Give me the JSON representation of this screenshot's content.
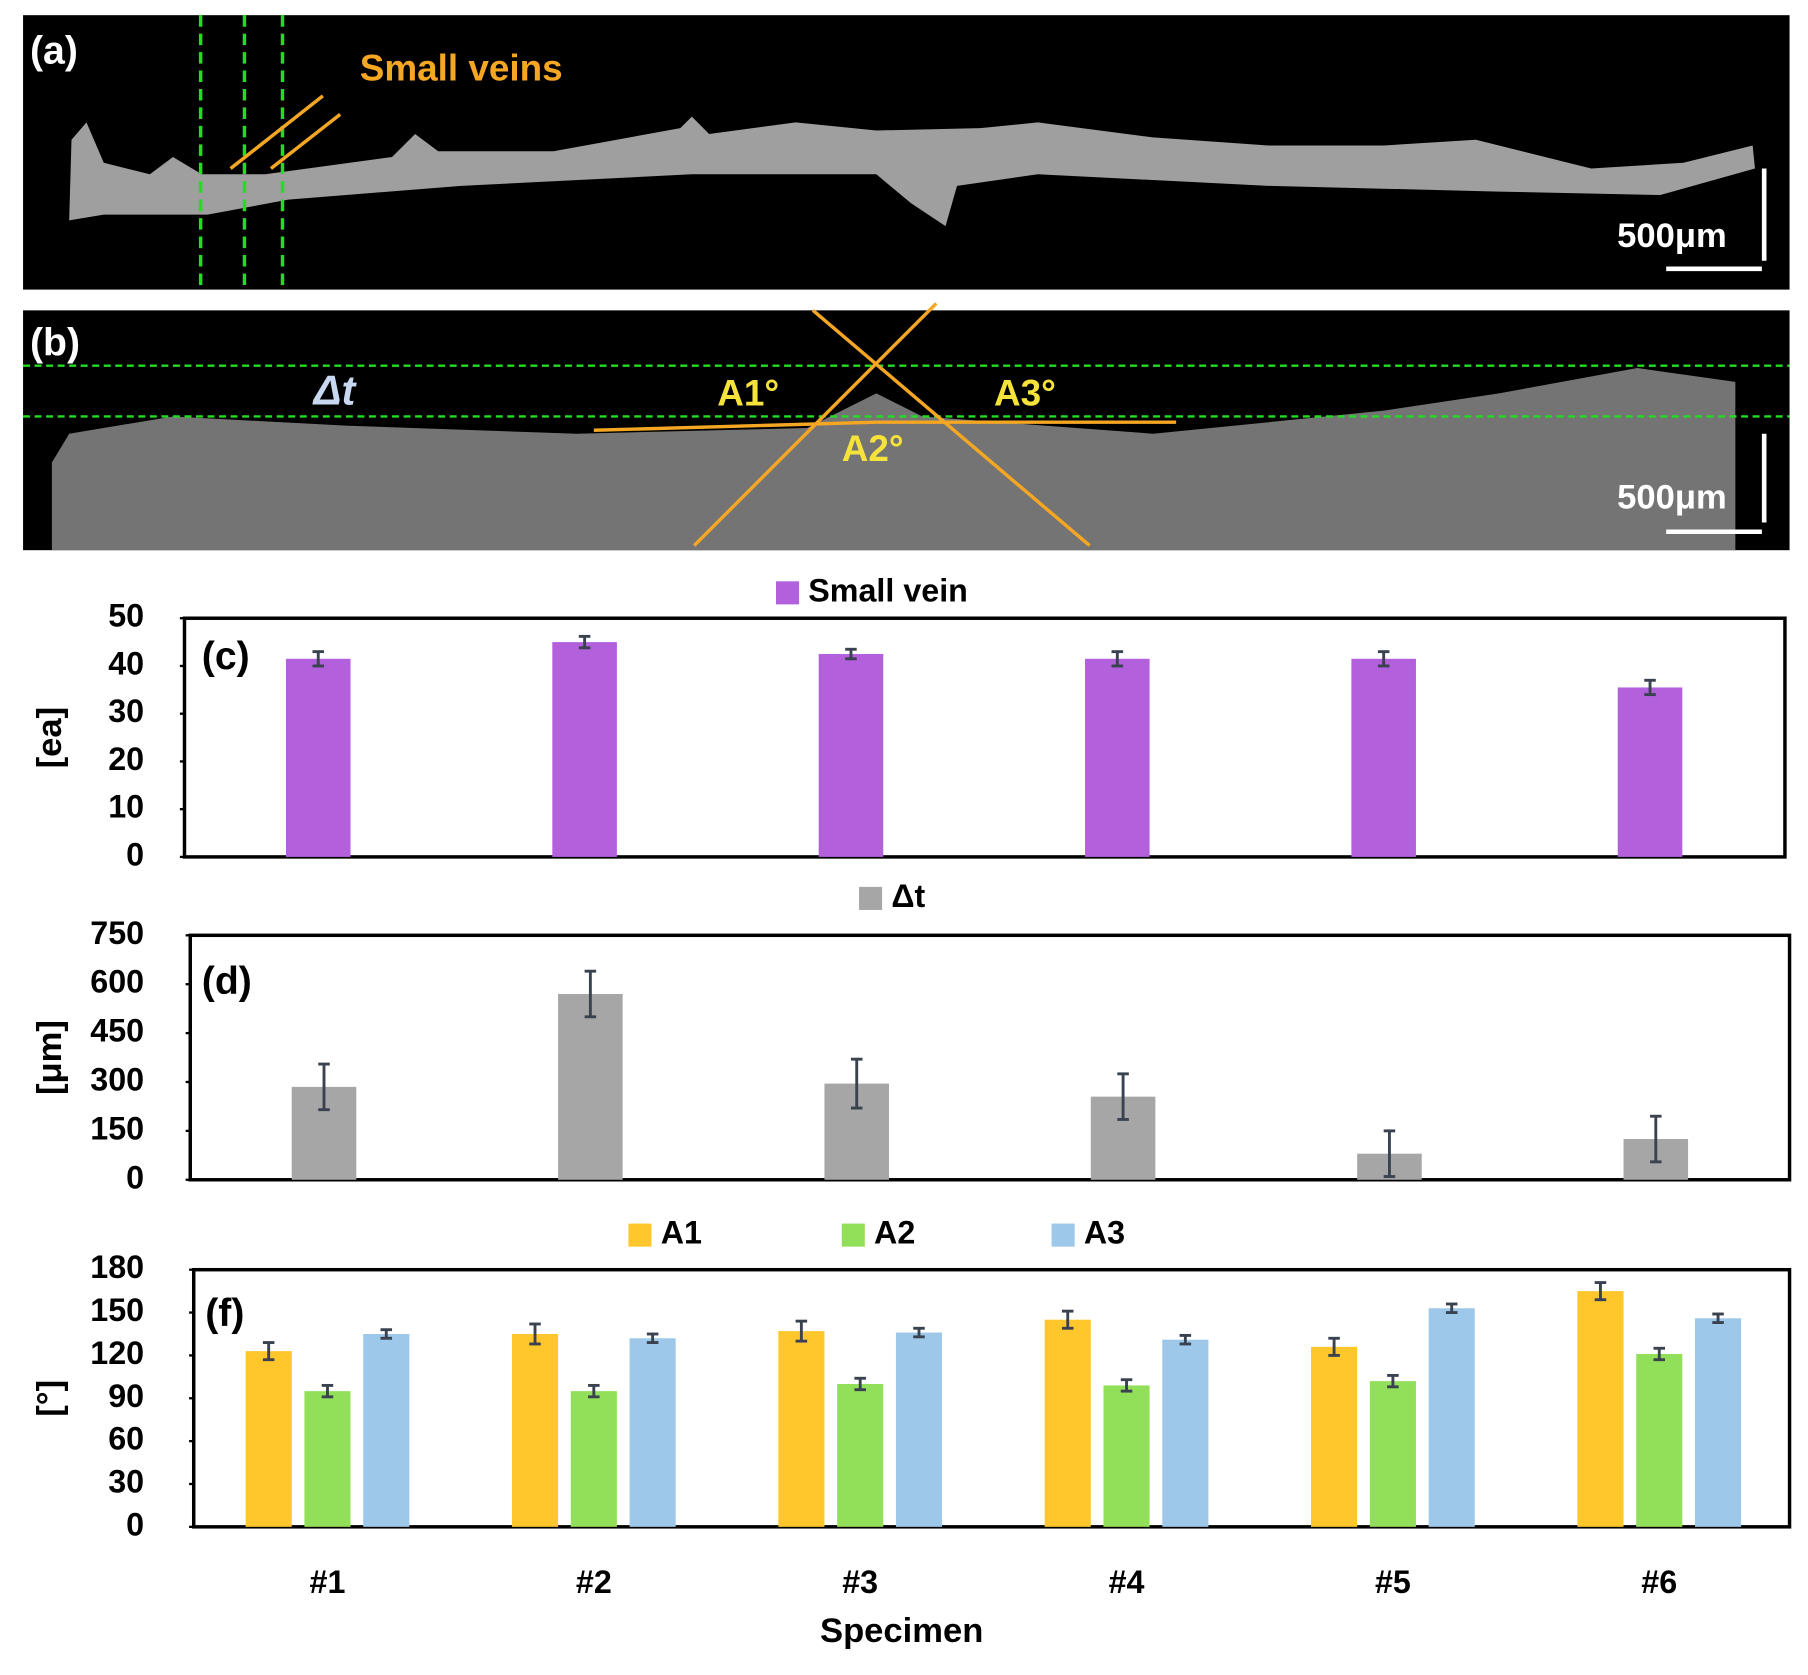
{
  "images": [
    {
      "label": "(a)",
      "annotation": "Small veins",
      "scale_bar": "500μm"
    },
    {
      "label": "(b)",
      "annotations": [
        "Δt",
        "A1°",
        "A2°",
        "A3°"
      ],
      "scale_bar": "500μm"
    }
  ],
  "chart_data": [
    {
      "type": "bar",
      "panel_label": "(c)",
      "ylabel": "[ea]",
      "categories": [
        null,
        null,
        null,
        null,
        null,
        null
      ],
      "series": [
        {
          "name": "Small vein",
          "color": "#b360dd",
          "values": [
            41.5,
            45,
            42.5,
            41.5,
            41.5,
            35.5
          ],
          "errors": [
            1.5,
            1.2,
            1,
            1.5,
            1.5,
            1.5
          ]
        }
      ],
      "ylim": [
        0,
        50
      ],
      "yticks": [
        0,
        10,
        20,
        30,
        40,
        50
      ]
    },
    {
      "type": "bar",
      "panel_label": "(d)",
      "ylabel": "[μm]",
      "categories": [
        null,
        null,
        null,
        null,
        null,
        null
      ],
      "series": [
        {
          "name": "Δt",
          "color": "#a6a6a6",
          "values": [
            285,
            570,
            295,
            255,
            80,
            125
          ],
          "errors": [
            70,
            70,
            75,
            70,
            70,
            70
          ]
        }
      ],
      "ylim": [
        0,
        750
      ],
      "yticks": [
        0,
        150,
        300,
        450,
        600,
        750
      ]
    },
    {
      "type": "bar",
      "panel_label": "(f)",
      "ylabel": "[°]",
      "xlabel": "Specimen",
      "categories": [
        "#1",
        "#2",
        "#3",
        "#4",
        "#5",
        "#6"
      ],
      "series": [
        {
          "name": "A1",
          "color": "#ffc72c",
          "values": [
            123,
            135,
            137,
            145,
            126,
            165
          ],
          "errors": [
            6,
            7,
            7,
            6,
            6,
            6
          ]
        },
        {
          "name": "A2",
          "color": "#92e05a",
          "values": [
            95,
            95,
            100,
            99,
            102,
            121
          ],
          "errors": [
            4,
            4,
            4,
            4,
            4,
            4
          ]
        },
        {
          "name": "A3",
          "color": "#9dc8ea",
          "values": [
            135,
            132,
            136,
            131,
            153,
            146
          ],
          "errors": [
            3,
            3,
            3,
            3,
            3,
            3
          ]
        }
      ],
      "ylim": [
        0,
        180
      ],
      "yticks": [
        0,
        30,
        60,
        90,
        120,
        150,
        180
      ]
    }
  ]
}
